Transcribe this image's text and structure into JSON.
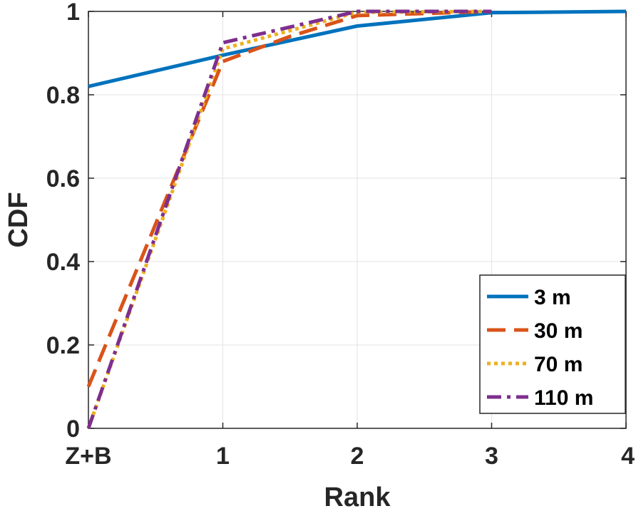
{
  "chart_data": {
    "type": "line",
    "title": "",
    "xlabel": "Rank",
    "ylabel": "CDF",
    "x": [
      0,
      1,
      2,
      3,
      4
    ],
    "x_tick_labels": [
      "Z+B",
      "1",
      "2",
      "3",
      "4"
    ],
    "y_tick_labels": [
      "0",
      "0.2",
      "0.4",
      "0.6",
      "0.8",
      "1"
    ],
    "xlim": [
      0,
      4
    ],
    "ylim": [
      0,
      1
    ],
    "grid": true,
    "legend_position": "bottom-right",
    "series": [
      {
        "name": "3 m",
        "x": [
          0,
          1,
          2,
          3,
          4
        ],
        "values": [
          0.82,
          0.895,
          0.965,
          0.997,
          1.0
        ],
        "color": "#0072BD",
        "style": "solid"
      },
      {
        "name": "30 m",
        "x": [
          0,
          1,
          1.5,
          2,
          3
        ],
        "values": [
          0.1,
          0.88,
          0.94,
          0.99,
          1.0
        ],
        "color": "#D95319",
        "style": "dashed"
      },
      {
        "name": "70 m",
        "x": [
          0,
          1,
          2,
          3
        ],
        "values": [
          0.0,
          0.91,
          0.998,
          1.0
        ],
        "color": "#EDB120",
        "style": "dotted"
      },
      {
        "name": "110 m",
        "x": [
          0,
          1,
          2,
          3
        ],
        "values": [
          0.0,
          0.925,
          1.0,
          1.0
        ],
        "color": "#7E2F8E",
        "style": "dashdot"
      }
    ]
  }
}
